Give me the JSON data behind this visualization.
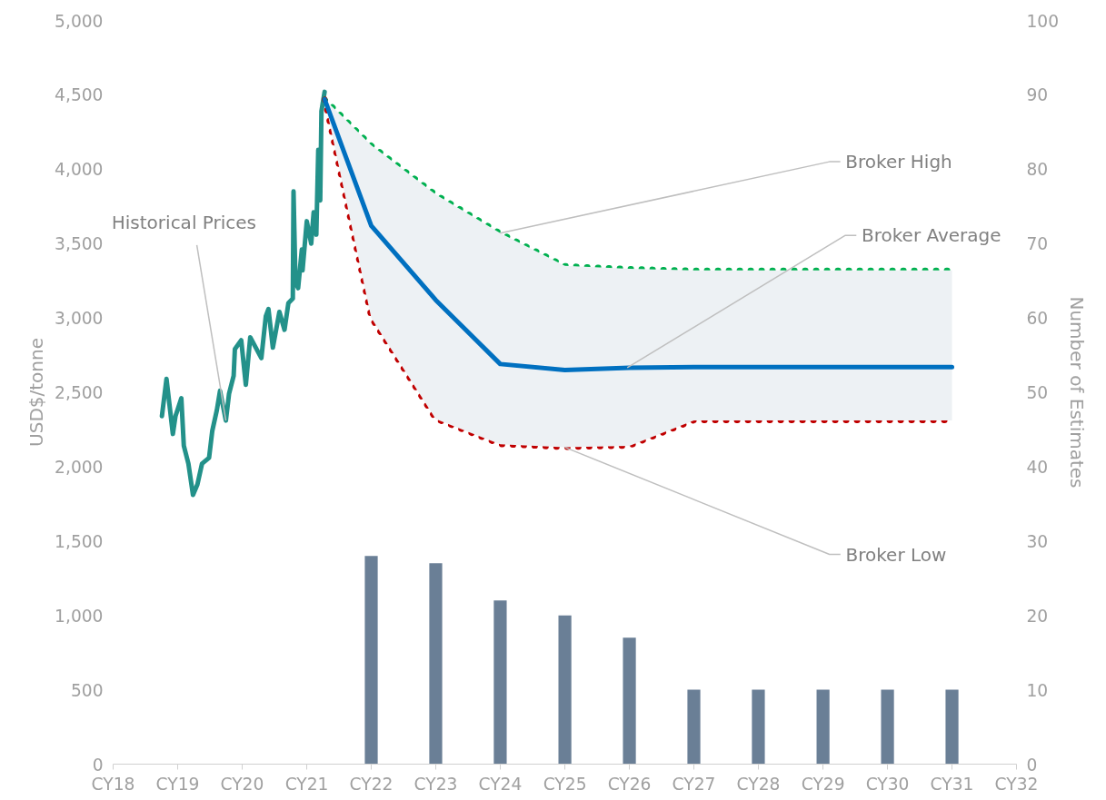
{
  "chart_data": {
    "type": "line",
    "ylabel": "USD$/tonne",
    "y2label": "Number of Estimates",
    "xlim": [
      "2018",
      "2032"
    ],
    "xticks": [
      {
        "value": "2018",
        "label": "CY18"
      },
      {
        "value": "2019",
        "label": "CY19"
      },
      {
        "value": "2020",
        "label": "CY20"
      },
      {
        "value": "2021",
        "label": "CY21"
      },
      {
        "value": "2022",
        "label": "CY22"
      },
      {
        "value": "2023",
        "label": "CY23"
      },
      {
        "value": "2024",
        "label": "CY24"
      },
      {
        "value": "2025",
        "label": "CY25"
      },
      {
        "value": "2026",
        "label": "CY26"
      },
      {
        "value": "2027",
        "label": "CY27"
      },
      {
        "value": "2028",
        "label": "CY28"
      },
      {
        "value": "2029",
        "label": "CY29"
      },
      {
        "value": "2030",
        "label": "CY30"
      },
      {
        "value": "2031",
        "label": "CY31"
      },
      {
        "value": "2032",
        "label": "CY32"
      }
    ],
    "ylim": [
      0,
      5000
    ],
    "yticks": [
      0,
      500,
      {
        "value": 1000,
        "label": "1,000"
      },
      {
        "value": 1500,
        "label": "1,500"
      },
      {
        "value": 2000,
        "label": "2,000"
      },
      {
        "value": 2500,
        "label": "2,500"
      },
      {
        "value": 3000,
        "label": "3,000"
      },
      {
        "value": 3500,
        "label": "3,500"
      },
      {
        "value": 4000,
        "label": "4,000"
      },
      {
        "value": 4500,
        "label": "4,500"
      },
      {
        "value": 5000,
        "label": "5,000"
      }
    ],
    "y2lim": [
      0,
      100
    ],
    "y2ticks": [
      0,
      10,
      20,
      30,
      40,
      50,
      60,
      70,
      80,
      90,
      100
    ],
    "grid": false,
    "series": [
      {
        "type": "bar",
        "axis": "y2",
        "color": "#6a7f96",
        "x": [
          "2022",
          "2023",
          "2024",
          "2025",
          "2026",
          "2027",
          "2028",
          "2029",
          "2030",
          "2031"
        ],
        "values": [
          28,
          27,
          22,
          20,
          17,
          10,
          10,
          10,
          10,
          10
        ]
      },
      {
        "color": "#23918a",
        "line_style": "solid",
        "x": [
          "2018-10-04",
          "2018-10-30",
          "2018-12-05",
          "2018-12-20",
          "2019-01-22",
          "2019-02-05",
          "2019-03-03",
          "2019-03-29",
          "2019-04-23",
          "2019-05-19",
          "2019-06-28",
          "2019-07-16",
          "2019-08-11",
          "2019-08-29",
          "2019-10-01",
          "2019-10-19",
          "2019-11-14",
          "2019-11-21",
          "2019-12-27",
          "2020-01-22",
          "2020-02-16",
          "2020-04-19",
          "2020-05-14",
          "2020-05-29",
          "2020-06-23",
          "2020-07-30",
          "2020-08-28",
          "2020-09-19",
          "2020-10-14",
          "2020-10-18",
          "2020-10-29",
          "2020-11-13",
          "2020-12-04",
          "2020-12-08",
          "2021-01-01",
          "2021-01-26",
          "2021-02-09",
          "2021-02-24",
          "2021-03-07",
          "2021-03-18",
          "2021-03-25",
          "2021-04-12"
        ],
        "values": [
          2340,
          2590,
          2220,
          2340,
          2460,
          2140,
          2020,
          1810,
          1880,
          2020,
          2060,
          2240,
          2380,
          2510,
          2310,
          2490,
          2610,
          2790,
          2850,
          2550,
          2870,
          2730,
          3010,
          3060,
          2800,
          3040,
          2920,
          3100,
          3130,
          3850,
          3240,
          3200,
          3460,
          3320,
          3650,
          3500,
          3710,
          3560,
          4130,
          3790,
          4390,
          4520
        ]
      },
      {
        "color": "#00b050",
        "line_style": "dotted",
        "x": [
          "2021-04-12",
          "2022",
          "2023",
          "2024",
          "2025",
          "2026",
          "2027",
          "2028",
          "2029",
          "2030",
          "2031"
        ],
        "values": [
          4470,
          4160,
          3830,
          3570,
          3350,
          3330,
          3320,
          3320,
          3320,
          3320,
          3320
        ]
      },
      {
        "color": "#c00000",
        "line_style": "dotted",
        "x": [
          "2021-04-12",
          "2022",
          "2023",
          "2024",
          "2025",
          "2026",
          "2027",
          "2028",
          "2029",
          "2030",
          "2031"
        ],
        "values": [
          4470,
          3000,
          2320,
          2150,
          2130,
          2140,
          2310,
          2310,
          2310,
          2310,
          2310
        ]
      },
      {
        "color": "#0070c0",
        "line_style": "solid",
        "x": [
          "2021-04-12",
          "2022",
          "2023",
          "2024",
          "2025",
          "2026",
          "2027",
          "2028",
          "2029",
          "2030",
          "2031"
        ],
        "values": [
          4470,
          3620,
          3120,
          2690,
          2650,
          2665,
          2670,
          2670,
          2670,
          2670,
          2670
        ],
        "lower": [
          4470,
          3000,
          2320,
          2150,
          2130,
          2140,
          2310,
          2310,
          2310,
          2310,
          2310
        ],
        "upper": [
          4470,
          4160,
          3830,
          3570,
          3350,
          3330,
          3320,
          3320,
          3320,
          3320,
          3320
        ]
      }
    ],
    "annotations": [
      {
        "text": "Historical Prices",
        "x": "2019-10-01",
        "y": 2310
      },
      {
        "text": "Broker High",
        "x": "2024",
        "y": 3570
      },
      {
        "text": "Broker Average",
        "x": "2025-12-20",
        "y": 2665
      },
      {
        "text": "Broker Low",
        "x": "2025",
        "y": 2130
      }
    ]
  }
}
